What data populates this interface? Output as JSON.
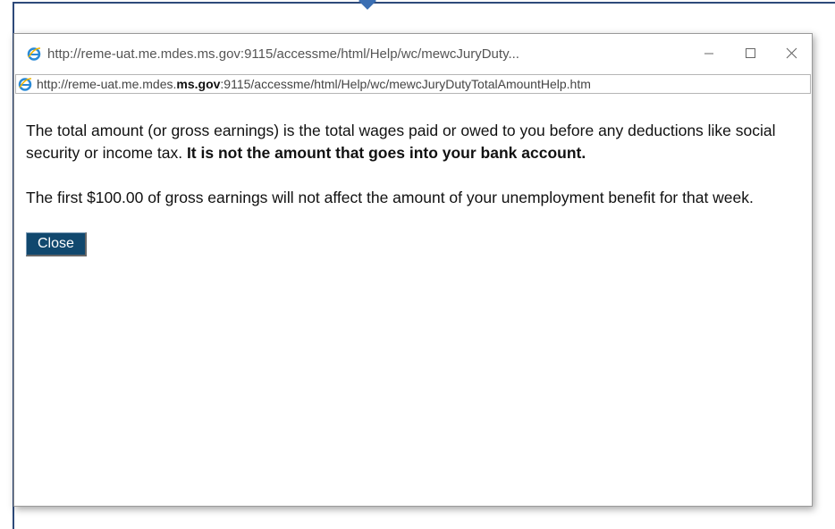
{
  "window": {
    "title": "http://reme-uat.me.mdes.ms.gov:9115/accessme/html/Help/wc/mewcJuryDuty...",
    "address": {
      "prefix": "http://reme-uat.me.mdes.",
      "domain": "ms.gov",
      "suffix": ":9115/accessme/html/Help/wc/mewcJuryDutyTotalAmountHelp.htm"
    }
  },
  "content": {
    "paragraphs": [
      {
        "text": "The total amount (or gross earnings) is the total wages paid or owed to you before any deductions like social security or income tax.",
        "bold": "It is not the amount that goes into your bank account."
      },
      {
        "text": "The first $100.00 of gross earnings will not affect the amount of your unemployment benefit for that week."
      }
    ],
    "close_button": "Close"
  }
}
